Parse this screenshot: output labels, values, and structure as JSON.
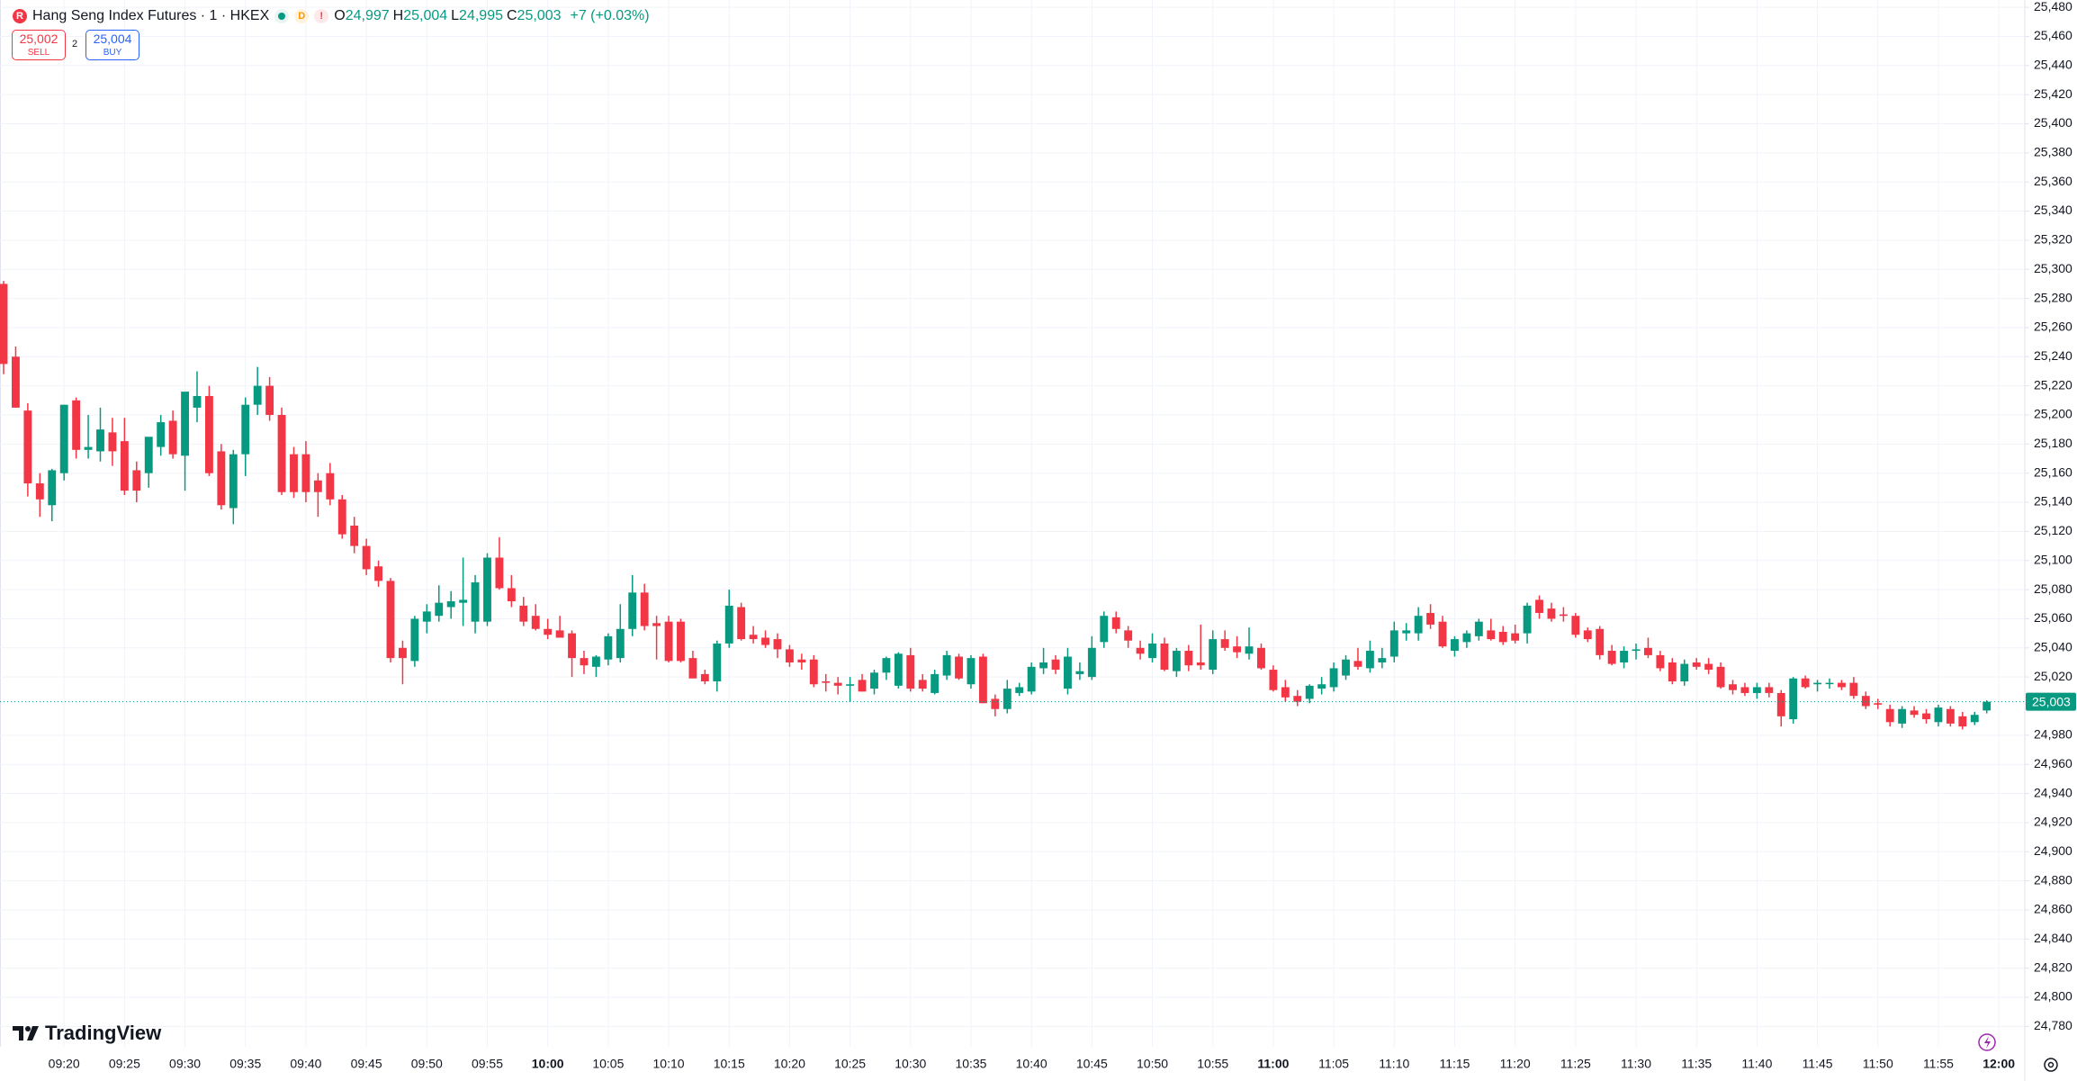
{
  "header": {
    "symbol": "Hang Seng Index Futures · 1 · HKEX",
    "badges": [
      "D",
      "!"
    ],
    "ohlc": [
      {
        "key": "O",
        "value": "24,997"
      },
      {
        "key": "H",
        "value": "25,004"
      },
      {
        "key": "L",
        "value": "24,995"
      },
      {
        "key": "C",
        "value": "25,003"
      }
    ],
    "change": "+7 (+0.03%)"
  },
  "trade": {
    "sell_price": "25,002",
    "sell_label": "SELL",
    "spread": "2",
    "buy_price": "25,004",
    "buy_label": "BUY"
  },
  "brand": "TradingView",
  "chart_data": {
    "type": "candlestick",
    "up_color": "#089981",
    "down_color": "#f23645",
    "grid": true,
    "x": [
      "09:15",
      "09:16",
      "09:17",
      "09:18",
      "09:19",
      "09:20",
      "09:21",
      "09:22",
      "09:23",
      "09:24",
      "09:25",
      "09:26",
      "09:27",
      "09:28",
      "09:29",
      "09:30",
      "09:31",
      "09:32",
      "09:33",
      "09:34",
      "09:35",
      "09:36",
      "09:37",
      "09:38",
      "09:39",
      "09:40",
      "09:41",
      "09:42",
      "09:43",
      "09:44",
      "09:45",
      "09:46",
      "09:47",
      "09:48",
      "09:49",
      "09:50",
      "09:51",
      "09:52",
      "09:53",
      "09:54",
      "09:55",
      "09:56",
      "09:57",
      "09:58",
      "09:59",
      "10:00",
      "10:01",
      "10:02",
      "10:03",
      "10:04",
      "10:05",
      "10:06",
      "10:07",
      "10:08",
      "10:09",
      "10:10",
      "10:11",
      "10:12",
      "10:13",
      "10:14",
      "10:15",
      "10:16",
      "10:17",
      "10:18",
      "10:19",
      "10:20",
      "10:21",
      "10:22",
      "10:23",
      "10:24",
      "10:25",
      "10:26",
      "10:27",
      "10:28",
      "10:29",
      "10:30",
      "10:31",
      "10:32",
      "10:33",
      "10:34",
      "10:35",
      "10:36",
      "10:37",
      "10:38",
      "10:39",
      "10:40",
      "10:41",
      "10:42",
      "10:43",
      "10:44",
      "10:45",
      "10:46",
      "10:47",
      "10:48",
      "10:49",
      "10:50",
      "10:51",
      "10:52",
      "10:53",
      "10:54",
      "10:55",
      "10:56",
      "10:57",
      "10:58",
      "10:59",
      "11:00",
      "11:01",
      "11:02",
      "11:03",
      "11:04",
      "11:05",
      "11:06",
      "11:07",
      "11:08",
      "11:09",
      "11:10",
      "11:11",
      "11:12",
      "11:13",
      "11:14",
      "11:15",
      "11:16",
      "11:17",
      "11:18",
      "11:19",
      "11:20",
      "11:21",
      "11:22",
      "11:23",
      "11:24",
      "11:25",
      "11:26",
      "11:27",
      "11:28",
      "11:29",
      "11:30",
      "11:31",
      "11:32",
      "11:33",
      "11:34",
      "11:35",
      "11:36",
      "11:37",
      "11:38",
      "11:39",
      "11:40",
      "11:41",
      "11:42",
      "11:43",
      "11:44",
      "11:45",
      "11:46",
      "11:47",
      "11:48",
      "11:49",
      "11:50",
      "11:51",
      "11:52",
      "11:53",
      "11:54",
      "11:55",
      "11:56",
      "11:57",
      "11:58",
      "11:59"
    ],
    "open": [
      25290,
      25240,
      25203,
      25153,
      25138,
      25160,
      25210,
      25176,
      25175,
      25188,
      25182,
      25162,
      25160,
      25178,
      25196,
      25172,
      25205,
      25213,
      25175,
      25136,
      25173,
      25207,
      25220,
      25200,
      25173,
      25173,
      25155,
      25160,
      25142,
      25124,
      25110,
      25096,
      25086,
      25040,
      25031,
      25058,
      25062,
      25068,
      25071,
      25058,
      25058,
      25102,
      25081,
      25069,
      25062,
      25053,
      25052,
      25050,
      25033,
      25027,
      25032,
      25033,
      25053,
      25078,
      25057,
      25058,
      25058,
      25033,
      25022,
      25017,
      25043,
      25068,
      25049,
      25047,
      25046,
      25039,
      25032,
      25032,
      25017,
      25016,
      25014,
      25018,
      25012,
      25023,
      25014,
      25035,
      25018,
      25009,
      25021,
      25034,
      25015,
      25034,
      25005,
      24998,
      25009,
      25010,
      25026,
      25032,
      25012,
      25022,
      25020,
      25044,
      25061,
      25052,
      25040,
      25033,
      25043,
      25024,
      25038,
      25030,
      25025,
      25046,
      25041,
      25036,
      25040,
      25025,
      25013,
      25007,
      25005,
      25012,
      25013,
      25021,
      25031,
      25026,
      25030,
      25034,
      25050,
      25050,
      25064,
      25058,
      25038,
      25044,
      25048,
      25052,
      25051,
      25050,
      25050,
      25073,
      25067,
      25063,
      25062,
      25052,
      25053,
      25038,
      25030,
      25038,
      25040,
      25035,
      25030,
      25017,
      25030,
      25029,
      25027,
      25015,
      25013,
      25009,
      25013,
      25009,
      24991,
      25019,
      25015,
      25016,
      25016,
      25016,
      25007,
      25002,
      24998,
      24988,
      24997,
      24995,
      24989,
      24998,
      24993,
      24989,
      24997
    ],
    "high": [
      25292,
      25247,
      25208,
      25160,
      25163,
      25207,
      25212,
      25200,
      25205,
      25198,
      25198,
      25168,
      25180,
      25200,
      25203,
      25215,
      25230,
      25220,
      25180,
      25176,
      25212,
      25233,
      25226,
      25205,
      25178,
      25182,
      25160,
      25167,
      25145,
      25130,
      25115,
      25100,
      25088,
      25045,
      25062,
      25070,
      25083,
      25079,
      25102,
      25090,
      25105,
      25116,
      25090,
      25075,
      25070,
      25060,
      25062,
      25052,
      25038,
      25035,
      25050,
      25070,
      25090,
      25084,
      25062,
      25062,
      25060,
      25038,
      25025,
      25045,
      25080,
      25071,
      25055,
      25052,
      25050,
      25042,
      25036,
      25035,
      25022,
      25020,
      25020,
      25022,
      25025,
      25034,
      25037,
      25040,
      25022,
      25025,
      25038,
      25036,
      25035,
      25036,
      25008,
      25018,
      25016,
      25030,
      25040,
      25035,
      25040,
      25030,
      25048,
      25065,
      25065,
      25055,
      25045,
      25050,
      25047,
      25040,
      25042,
      25056,
      25052,
      25052,
      25048,
      25054,
      25043,
      25028,
      25018,
      25011,
      25015,
      25020,
      25030,
      25035,
      25040,
      25045,
      25040,
      25058,
      25057,
      25068,
      25070,
      25062,
      25048,
      25052,
      25060,
      25060,
      25055,
      25056,
      25071,
      25076,
      25071,
      25068,
      25064,
      25054,
      25055,
      25042,
      25041,
      25043,
      25047,
      25038,
      25033,
      25032,
      25033,
      25033,
      25030,
      25018,
      25016,
      25016,
      25016,
      25011,
      25020,
      25021,
      25018,
      25019,
      25018,
      25020,
      25010,
      25005,
      25001,
      25000,
      25000,
      24998,
      25001,
      25000,
      24996,
      24996,
      25004
    ],
    "low": [
      25228,
      25205,
      25144,
      25130,
      25127,
      25155,
      25170,
      25170,
      25168,
      25165,
      25145,
      25140,
      25150,
      25172,
      25170,
      25148,
      25195,
      25158,
      25135,
      25125,
      25158,
      25200,
      25196,
      25145,
      25143,
      25140,
      25130,
      25138,
      25115,
      25105,
      25090,
      25082,
      25030,
      25015,
      25027,
      25050,
      25058,
      25060,
      25055,
      25050,
      25055,
      25080,
      25068,
      25055,
      25052,
      25046,
      25048,
      25020,
      25022,
      25020,
      25028,
      25030,
      25048,
      25052,
      25032,
      25030,
      25030,
      25020,
      25015,
      25010,
      25040,
      25045,
      25043,
      25040,
      25033,
      25027,
      25025,
      25013,
      25010,
      25008,
      25003,
      25010,
      25008,
      25018,
      25012,
      25010,
      25010,
      25008,
      25018,
      25018,
      25012,
      25002,
      24993,
      24995,
      25007,
      25008,
      25022,
      25022,
      25008,
      25018,
      25018,
      25040,
      25050,
      25040,
      25032,
      25030,
      25024,
      25020,
      25024,
      25025,
      25022,
      25038,
      25033,
      25032,
      25025,
      25010,
      25003,
      25000,
      25002,
      25008,
      25010,
      25018,
      25025,
      25023,
      25026,
      25030,
      25045,
      25045,
      25053,
      25040,
      25034,
      25040,
      25045,
      25045,
      25042,
      25043,
      25043,
      25060,
      25058,
      25058,
      25047,
      25044,
      25032,
      25028,
      25026,
      25032,
      25033,
      25024,
      25015,
      25014,
      25025,
      25022,
      25012,
      25008,
      25007,
      25005,
      25006,
      24986,
      24988,
      25012,
      25010,
      25012,
      25011,
      25005,
      24998,
      24998,
      24986,
      24985,
      24992,
      24988,
      24986,
      24986,
      24984,
      24987,
      24995
    ],
    "close": [
      25235,
      25205,
      25153,
      25142,
      25162,
      25207,
      25176,
      25178,
      25190,
      25175,
      25148,
      25148,
      25185,
      25195,
      25173,
      25216,
      25213,
      25160,
      25138,
      25173,
      25207,
      25220,
      25200,
      25147,
      25147,
      25147,
      25147,
      25142,
      25118,
      25110,
      25094,
      25086,
      25033,
      25033,
      25060,
      25065,
      25071,
      25072,
      25073,
      25085,
      25102,
      25081,
      25072,
      25058,
      25053,
      25049,
      25047,
      25033,
      25028,
      25034,
      25048,
      25053,
      25078,
      25055,
      25055,
      25031,
      25031,
      25019,
      25017,
      25043,
      25069,
      25046,
      25046,
      25042,
      25039,
      25030,
      25030,
      25015,
      25016,
      25014,
      25015,
      25010,
      25023,
      25033,
      25036,
      25012,
      25012,
      25022,
      25035,
      25019,
      25033,
      25002,
      24998,
      25012,
      25013,
      25027,
      25030,
      25025,
      25034,
      25024,
      25040,
      25062,
      25053,
      25045,
      25036,
      25043,
      25025,
      25038,
      25028,
      25028,
      25046,
      25040,
      25037,
      25041,
      25026,
      25011,
      25006,
      25003,
      25014,
      25015,
      25026,
      25032,
      25027,
      25038,
      25033,
      25052,
      25052,
      25062,
      25056,
      25041,
      25046,
      25050,
      25058,
      25046,
      25044,
      25045,
      25069,
      25064,
      25060,
      25062,
      25049,
      25046,
      25035,
      25029,
      25038,
      25039,
      25035,
      25026,
      25017,
      25029,
      25027,
      25025,
      25013,
      25011,
      25009,
      25013,
      25009,
      24993,
      25019,
      25013,
      25016,
      25016,
      25013,
      25007,
      25000,
      25001,
      24989,
      24998,
      24994,
      24991,
      24999,
      24988,
      24986,
      24994,
      25003
    ],
    "xlim": [
      "09:15",
      "12:02"
    ],
    "xticks": [
      "09:20",
      "09:25",
      "09:30",
      "09:35",
      "09:40",
      "09:45",
      "09:50",
      "09:55",
      "10:00",
      "10:05",
      "10:10",
      "10:15",
      "10:20",
      "10:25",
      "10:30",
      "10:35",
      "10:40",
      "10:45",
      "10:50",
      "10:55",
      "11:00",
      "11:05",
      "11:10",
      "11:15",
      "11:20",
      "11:25",
      "11:30",
      "11:35",
      "11:40",
      "11:45",
      "11:50",
      "11:55",
      "12:00"
    ],
    "ylim": [
      24766,
      25485
    ],
    "yticks": [
      {
        "value": 25480,
        "label": "25,480"
      },
      {
        "value": 25460,
        "label": "25,460"
      },
      {
        "value": 25440,
        "label": "25,440"
      },
      {
        "value": 25420,
        "label": "25,420"
      },
      {
        "value": 25400,
        "label": "25,400"
      },
      {
        "value": 25380,
        "label": "25,380"
      },
      {
        "value": 25360,
        "label": "25,360"
      },
      {
        "value": 25340,
        "label": "25,340"
      },
      {
        "value": 25320,
        "label": "25,320"
      },
      {
        "value": 25300,
        "label": "25,300"
      },
      {
        "value": 25280,
        "label": "25,280"
      },
      {
        "value": 25260,
        "label": "25,260"
      },
      {
        "value": 25240,
        "label": "25,240"
      },
      {
        "value": 25220,
        "label": "25,220"
      },
      {
        "value": 25200,
        "label": "25,200"
      },
      {
        "value": 25180,
        "label": "25,180"
      },
      {
        "value": 25160,
        "label": "25,160"
      },
      {
        "value": 25140,
        "label": "25,140"
      },
      {
        "value": 25120,
        "label": "25,120"
      },
      {
        "value": 25100,
        "label": "25,100"
      },
      {
        "value": 25080,
        "label": "25,080"
      },
      {
        "value": 25060,
        "label": "25,060"
      },
      {
        "value": 25040,
        "label": "25,040"
      },
      {
        "value": 25020,
        "label": "25,020"
      },
      {
        "value": 24980,
        "label": "24,980"
      },
      {
        "value": 24960,
        "label": "24,960"
      },
      {
        "value": 24940,
        "label": "24,940"
      },
      {
        "value": 24920,
        "label": "24,920"
      },
      {
        "value": 24900,
        "label": "24,900"
      },
      {
        "value": 24880,
        "label": "24,880"
      },
      {
        "value": 24860,
        "label": "24,860"
      },
      {
        "value": 24840,
        "label": "24,840"
      },
      {
        "value": 24820,
        "label": "24,820"
      },
      {
        "value": 24800,
        "label": "24,800"
      },
      {
        "value": 24780,
        "label": "24,780"
      }
    ],
    "last_price": {
      "value": 25003,
      "label": "25,003"
    }
  }
}
